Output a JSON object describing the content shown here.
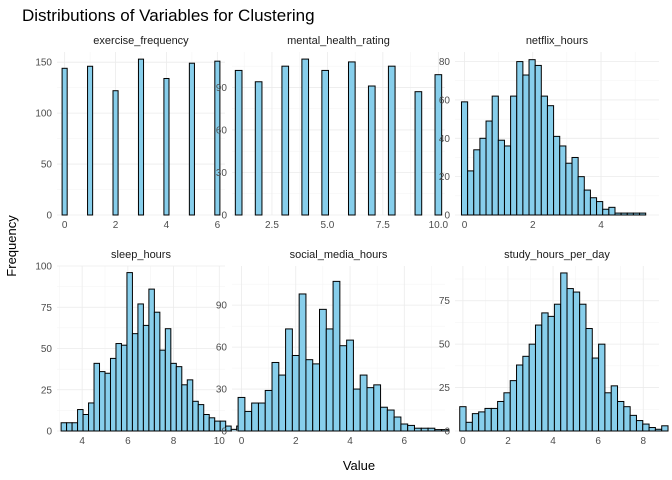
{
  "chart_data": {
    "type": "bar",
    "title": "Distributions of Variables for Clustering",
    "xlabel": "Value",
    "ylabel": "Frequency",
    "colors": {
      "bar_fill": "#87ceeb",
      "bar_stroke": "#000000",
      "grid": "#ebebeb"
    },
    "grid": true,
    "facets": [
      {
        "name": "exercise_frequency",
        "xlim": [
          -0.3,
          6.3
        ],
        "ylim": [
          0,
          160
        ],
        "xticks": [
          0,
          2,
          4,
          6
        ],
        "xtick_labels": [
          "0",
          "2",
          "4",
          "6"
        ],
        "yticks": [
          0,
          50,
          100,
          150
        ],
        "ytick_labels": [
          "0",
          "50",
          "100",
          "150"
        ],
        "bin_width": 0.2,
        "bin_start": -0.1,
        "values": [
          144,
          0,
          0,
          0,
          0,
          146,
          0,
          0,
          0,
          0,
          122,
          0,
          0,
          0,
          0,
          153,
          0,
          0,
          0,
          0,
          134,
          0,
          0,
          0,
          0,
          149,
          0,
          0,
          0,
          0,
          151
        ]
      },
      {
        "name": "mental_health_rating",
        "xlim": [
          0.7,
          10.3
        ],
        "ylim": [
          0,
          115
        ],
        "xticks": [
          2.5,
          5.0,
          7.5,
          10.0
        ],
        "xtick_labels": [
          "2.5",
          "5.0",
          "7.5",
          "10.0"
        ],
        "yticks": [
          0,
          30,
          60,
          90
        ],
        "ytick_labels": [
          "0",
          "30",
          "60",
          "90"
        ],
        "bin_width": 0.3,
        "bin_start": 0.85,
        "values": [
          102,
          0,
          0,
          94,
          0,
          0,
          0,
          105,
          0,
          0,
          110,
          0,
          0,
          102,
          0,
          0,
          0,
          108,
          0,
          0,
          91,
          0,
          0,
          105,
          0,
          0,
          0,
          87,
          0,
          0,
          99
        ]
      },
      {
        "name": "netflix_hours",
        "xlim": [
          -0.28,
          5.7
        ],
        "ylim": [
          0,
          85
        ],
        "xticks": [
          0,
          2,
          4
        ],
        "xtick_labels": [
          "0",
          "2",
          "4"
        ],
        "yticks": [
          0,
          20,
          40,
          60,
          80
        ],
        "ytick_labels": [
          "0",
          "20",
          "40",
          "60",
          "80"
        ],
        "bin_width": 0.18,
        "bin_start": -0.09,
        "values": [
          59,
          23,
          34,
          40,
          49,
          62,
          39,
          36,
          62,
          80,
          73,
          81,
          78,
          62,
          57,
          41,
          36,
          27,
          30,
          20,
          13,
          9,
          7,
          3,
          4,
          1,
          1,
          1,
          1,
          1
        ]
      },
      {
        "name": "sleep_hours",
        "xlim": [
          2.9,
          10.25
        ],
        "ylim": [
          0,
          100
        ],
        "xticks": [
          4,
          6,
          8,
          10
        ],
        "xtick_labels": [
          "4",
          "6",
          "8",
          "10"
        ],
        "yticks": [
          0,
          25,
          50,
          75,
          100
        ],
        "ytick_labels": [
          "0",
          "25",
          "50",
          "75",
          "100"
        ],
        "bin_width": 0.24,
        "bin_start": 3.08,
        "values": [
          5,
          5,
          5,
          13,
          10,
          17,
          41,
          36,
          35,
          44,
          53,
          52,
          96,
          59,
          77,
          64,
          86,
          72,
          49,
          62,
          41,
          39,
          28,
          31,
          18,
          16,
          10,
          8,
          6,
          6,
          3,
          1,
          3
        ]
      },
      {
        "name": "social_media_hours",
        "xlim": [
          -0.35,
          7.5
        ],
        "ylim": [
          0,
          118
        ],
        "xticks": [
          0,
          2,
          4,
          6
        ],
        "xtick_labels": [
          "0",
          "2",
          "4",
          "6"
        ],
        "yticks": [
          0,
          30,
          60,
          90
        ],
        "ytick_labels": [
          "0",
          "30",
          "60",
          "90"
        ],
        "bin_width": 0.25,
        "bin_start": -0.125,
        "values": [
          24,
          14,
          20,
          20,
          29,
          49,
          40,
          73,
          54,
          98,
          51,
          48,
          87,
          73,
          107,
          61,
          65,
          30,
          40,
          31,
          33,
          17,
          15,
          10,
          5,
          4,
          2,
          2,
          2,
          1,
          1,
          0,
          0,
          0,
          0,
          2
        ]
      },
      {
        "name": "study_hours_per_day",
        "xlim": [
          -0.35,
          8.7
        ],
        "ylim": [
          0,
          95
        ],
        "xticks": [
          0,
          2,
          4,
          6,
          8
        ],
        "xtick_labels": [
          "0",
          "2",
          "4",
          "6",
          "8"
        ],
        "yticks": [
          0,
          25,
          50,
          75
        ],
        "ytick_labels": [
          "0",
          "25",
          "50",
          "75"
        ],
        "bin_width": 0.28,
        "bin_start": -0.14,
        "values": [
          14,
          5,
          10,
          11,
          13,
          13,
          17,
          22,
          29,
          38,
          43,
          50,
          61,
          68,
          66,
          73,
          91,
          82,
          80,
          73,
          59,
          42,
          50,
          22,
          26,
          17,
          14,
          9,
          6,
          4,
          2,
          1,
          3
        ]
      }
    ]
  }
}
